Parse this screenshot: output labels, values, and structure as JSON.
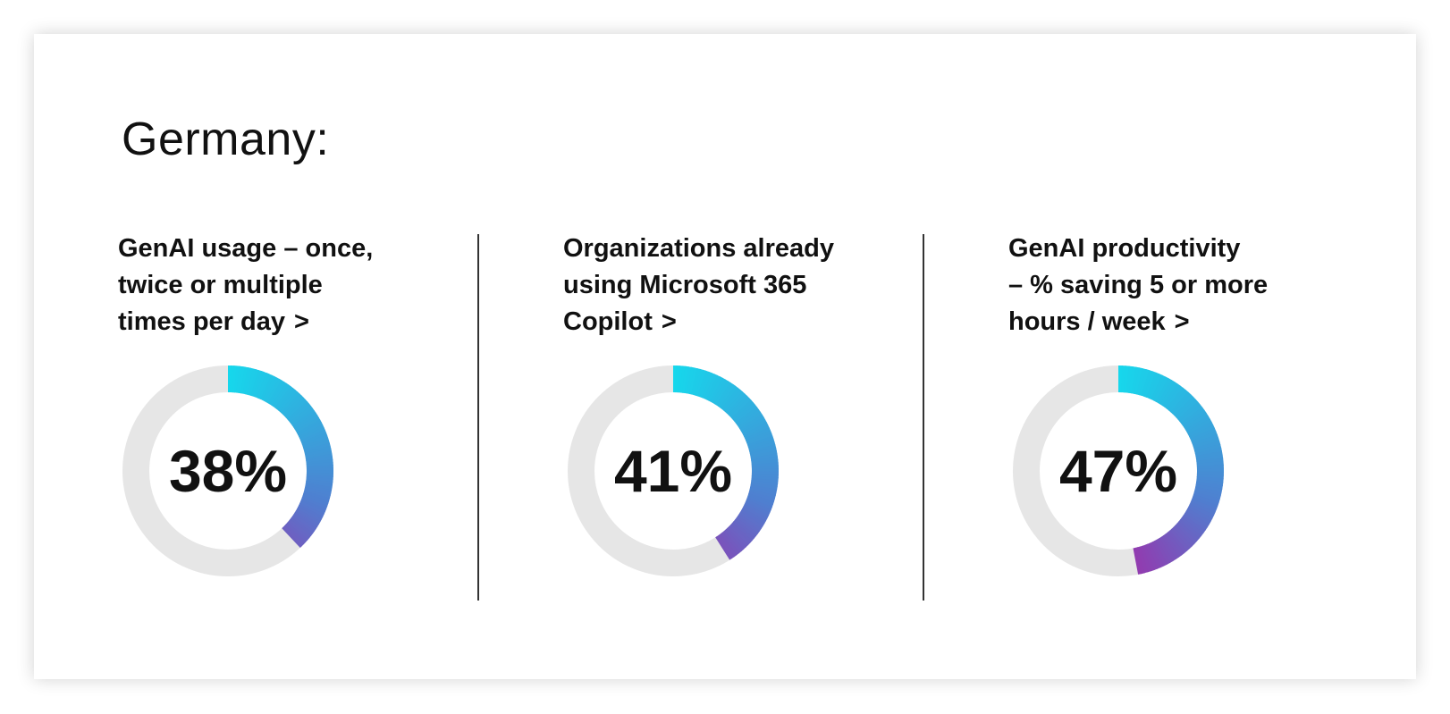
{
  "page": {
    "title": "Germany:"
  },
  "colors": {
    "track": "#e6e6e6",
    "gradient_start": "#16d8ec",
    "gradient_mid": "#4f7fd0",
    "gradient_end": "#b21aa0",
    "divider": "#333333"
  },
  "chart_data": [
    {
      "type": "pie",
      "title": "GenAI usage – once,\ntwice or multiple\ntimes per day",
      "link_glyph": ">",
      "values": [
        38,
        62
      ],
      "label": "38%"
    },
    {
      "type": "pie",
      "title": "Organizations already\nusing Microsoft 365\nCopilot",
      "link_glyph": ">",
      "values": [
        41,
        59
      ],
      "label": "41%"
    },
    {
      "type": "pie",
      "title": "GenAI productivity\n–  % saving 5 or more\nhours / week",
      "link_glyph": ">",
      "values": [
        47,
        53
      ],
      "label": "47%"
    }
  ]
}
